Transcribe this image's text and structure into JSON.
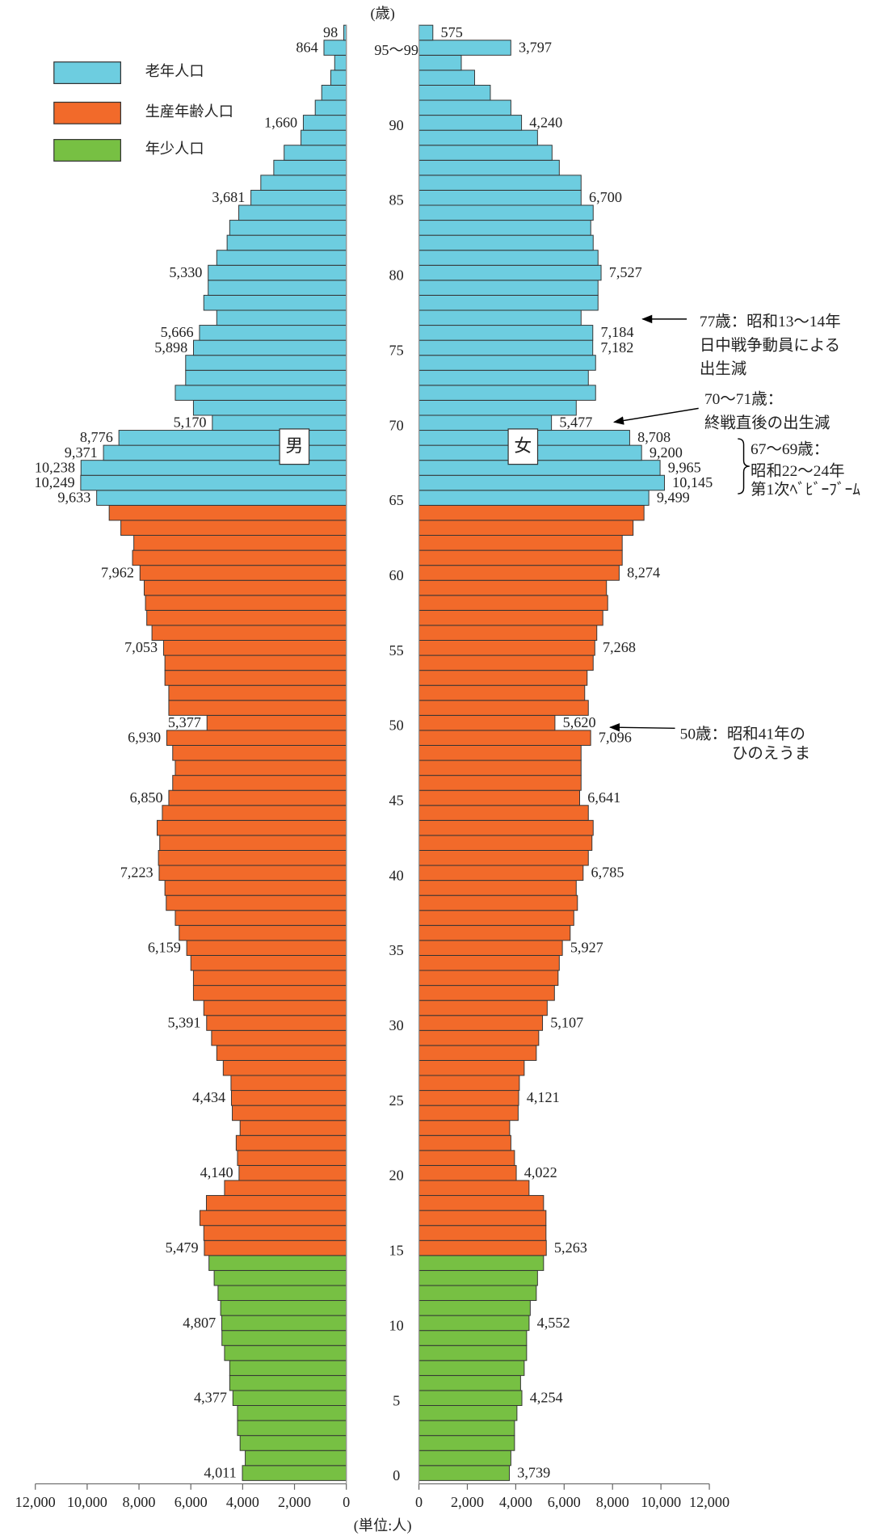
{
  "chart_data": {
    "type": "population_pyramid",
    "y_unit": "(歳)",
    "x_unit": "(単位:人)",
    "legend": [
      {
        "name": "老年人口",
        "color": "#6dcde0"
      },
      {
        "name": "生産年齢人口",
        "color": "#f26a2a"
      },
      {
        "name": "年少人口",
        "color": "#77c043"
      }
    ],
    "categories": [
      "0",
      null,
      null,
      null,
      null,
      "5",
      null,
      null,
      null,
      null,
      "10",
      null,
      null,
      null,
      null,
      "15",
      null,
      null,
      null,
      null,
      "20",
      null,
      null,
      null,
      null,
      "25",
      null,
      null,
      null,
      null,
      "30",
      null,
      null,
      null,
      null,
      "35",
      null,
      null,
      null,
      null,
      "40",
      null,
      null,
      null,
      null,
      "45",
      null,
      null,
      null,
      null,
      "50",
      null,
      null,
      null,
      null,
      "55",
      null,
      null,
      null,
      null,
      "60",
      null,
      null,
      null,
      null,
      "65",
      null,
      null,
      null,
      null,
      "70",
      null,
      null,
      null,
      null,
      "75",
      null,
      null,
      null,
      null,
      "80",
      null,
      null,
      null,
      null,
      "85",
      null,
      null,
      null,
      null,
      "90",
      null,
      null,
      null,
      null,
      "95～99",
      null
    ],
    "bar_colors": [
      "#77c043",
      "#77c043",
      "#77c043",
      "#77c043",
      "#77c043",
      "#77c043",
      "#77c043",
      "#77c043",
      "#77c043",
      "#77c043",
      "#77c043",
      "#77c043",
      "#77c043",
      "#77c043",
      "#77c043",
      "#f26a2a",
      "#f26a2a",
      "#f26a2a",
      "#f26a2a",
      "#f26a2a",
      "#f26a2a",
      "#f26a2a",
      "#f26a2a",
      "#f26a2a",
      "#f26a2a",
      "#f26a2a",
      "#f26a2a",
      "#f26a2a",
      "#f26a2a",
      "#f26a2a",
      "#f26a2a",
      "#f26a2a",
      "#f26a2a",
      "#f26a2a",
      "#f26a2a",
      "#f26a2a",
      "#f26a2a",
      "#f26a2a",
      "#f26a2a",
      "#f26a2a",
      "#f26a2a",
      "#f26a2a",
      "#f26a2a",
      "#f26a2a",
      "#f26a2a",
      "#f26a2a",
      "#f26a2a",
      "#f26a2a",
      "#f26a2a",
      "#f26a2a",
      "#f26a2a",
      "#f26a2a",
      "#f26a2a",
      "#f26a2a",
      "#f26a2a",
      "#f26a2a",
      "#f26a2a",
      "#f26a2a",
      "#f26a2a",
      "#f26a2a",
      "#f26a2a",
      "#f26a2a",
      "#f26a2a",
      "#f26a2a",
      "#f26a2a",
      "#6dcde0",
      "#6dcde0",
      "#6dcde0",
      "#6dcde0",
      "#6dcde0",
      "#6dcde0",
      "#6dcde0",
      "#6dcde0",
      "#6dcde0",
      "#6dcde0",
      "#6dcde0",
      "#6dcde0",
      "#6dcde0",
      "#6dcde0",
      "#6dcde0",
      "#6dcde0",
      "#6dcde0",
      "#6dcde0",
      "#6dcde0",
      "#6dcde0",
      "#6dcde0",
      "#6dcde0",
      "#6dcde0",
      "#6dcde0",
      "#6dcde0",
      "#6dcde0",
      "#6dcde0",
      "#6dcde0",
      "#6dcde0",
      "#6dcde0",
      "#6dcde0",
      "#6dcde0"
    ],
    "series": [
      {
        "name": "男",
        "xlim": [
          12000,
          0
        ],
        "xticks": [
          {
            "value": 12000,
            "label": "12,000"
          },
          {
            "value": 10000,
            "label": "10,000"
          },
          {
            "value": 8000,
            "label": "8,000"
          },
          {
            "value": 6000,
            "label": "6,000"
          },
          {
            "value": 4000,
            "label": "4,000"
          },
          {
            "value": 2000,
            "label": "2,000"
          },
          0
        ],
        "values": [
          4011,
          3900,
          4100,
          4200,
          4200,
          4377,
          4500,
          4500,
          4700,
          4800,
          4807,
          4850,
          4950,
          5100,
          5300,
          5479,
          5500,
          5650,
          5400,
          4700,
          4140,
          4200,
          4250,
          4100,
          4400,
          4434,
          4450,
          4750,
          5000,
          5200,
          5391,
          5500,
          5900,
          5900,
          6000,
          6159,
          6450,
          6600,
          6950,
          7000,
          7223,
          7250,
          7200,
          7300,
          7100,
          6850,
          6700,
          6600,
          6700,
          6930,
          5377,
          6850,
          6850,
          7000,
          7000,
          7053,
          7500,
          7700,
          7750,
          7800,
          7962,
          8250,
          8200,
          8700,
          9150,
          9633,
          10249,
          10238,
          9371,
          8776,
          5170,
          5900,
          6600,
          6200,
          6200,
          5898,
          5666,
          5000,
          5500,
          5330,
          5330,
          5000,
          4600,
          4500,
          4150,
          3681,
          3300,
          2800,
          2400,
          1750,
          1660,
          1200,
          950,
          600,
          450,
          864,
          98
        ],
        "value_labels": [
          "4,011",
          null,
          null,
          null,
          null,
          "4,377",
          null,
          null,
          null,
          null,
          "4,807",
          null,
          null,
          null,
          null,
          "5,479",
          null,
          null,
          null,
          null,
          "4,140",
          null,
          null,
          null,
          null,
          "4,434",
          null,
          null,
          null,
          null,
          "5,391",
          null,
          null,
          null,
          null,
          "6,159",
          null,
          null,
          null,
          null,
          "7,223",
          null,
          null,
          null,
          null,
          "6,850",
          null,
          null,
          null,
          "6,930",
          "5,377",
          null,
          null,
          null,
          null,
          "7,053",
          null,
          null,
          null,
          null,
          "7,962",
          null,
          null,
          null,
          null,
          "9,633",
          "10,249",
          "10,238",
          "9,371",
          "8,776",
          "5,170",
          null,
          null,
          null,
          null,
          "5,898",
          "5,666",
          null,
          null,
          null,
          "5,330",
          null,
          null,
          null,
          null,
          "3,681",
          null,
          null,
          null,
          null,
          "1,660",
          null,
          null,
          null,
          null,
          "864",
          "98"
        ]
      },
      {
        "name": "女",
        "xlim": [
          0,
          12000
        ],
        "xticks": [
          0,
          {
            "value": 2000,
            "label": "2,000"
          },
          {
            "value": 4000,
            "label": "4,000"
          },
          {
            "value": 6000,
            "label": "6,000"
          },
          {
            "value": 8000,
            "label": "8,000"
          },
          {
            "value": 10000,
            "label": "10,000"
          },
          {
            "value": 12000,
            "label": "12,000"
          }
        ],
        "values": [
          3739,
          3800,
          3950,
          3950,
          4050,
          4254,
          4200,
          4350,
          4450,
          4450,
          4552,
          4600,
          4850,
          4900,
          5150,
          5263,
          5250,
          5250,
          5150,
          4550,
          4022,
          3950,
          3800,
          3750,
          4100,
          4121,
          4150,
          4350,
          4850,
          4950,
          5107,
          5300,
          5600,
          5750,
          5800,
          5927,
          6250,
          6400,
          6550,
          6500,
          6785,
          7000,
          7150,
          7200,
          7000,
          6641,
          6700,
          6700,
          6700,
          7096,
          5620,
          7000,
          6850,
          6950,
          7200,
          7268,
          7350,
          7600,
          7800,
          7750,
          8274,
          8400,
          8400,
          8850,
          9300,
          9499,
          10145,
          9965,
          9200,
          8708,
          5477,
          6500,
          7300,
          7000,
          7300,
          7182,
          7184,
          6700,
          7400,
          7400,
          7527,
          7400,
          7200,
          7100,
          7200,
          6700,
          6700,
          5800,
          5500,
          4900,
          4240,
          3800,
          2950,
          2300,
          1750,
          3797,
          575
        ],
        "value_labels": [
          "3,739",
          null,
          null,
          null,
          null,
          "4,254",
          null,
          null,
          null,
          null,
          "4,552",
          null,
          null,
          null,
          null,
          "5,263",
          null,
          null,
          null,
          null,
          "4,022",
          null,
          null,
          null,
          null,
          "4,121",
          null,
          null,
          null,
          null,
          "5,107",
          null,
          null,
          null,
          null,
          "5,927",
          null,
          null,
          null,
          null,
          "6,785",
          null,
          null,
          null,
          null,
          "6,641",
          null,
          null,
          null,
          "7,096",
          "5,620",
          null,
          null,
          null,
          null,
          "7,268",
          null,
          null,
          null,
          null,
          "8,274",
          null,
          null,
          null,
          null,
          "9,499",
          "10,145",
          "9,965",
          "9,200",
          "8,708",
          "5,477",
          null,
          null,
          null,
          null,
          "7,182",
          "7,184",
          null,
          null,
          null,
          "7,527",
          null,
          null,
          null,
          null,
          "6,700",
          null,
          null,
          null,
          null,
          "4,240",
          null,
          null,
          null,
          null,
          "3,797",
          "575"
        ]
      }
    ],
    "annotations": [
      {
        "text": [
          "77歳：昭和13～14年",
          "日中戦争動員による",
          "出生減"
        ]
      },
      {
        "text": [
          "70～71歳：",
          "終戦直後の出生減"
        ]
      },
      {
        "text": [
          "67～69歳：",
          "昭和22～24年",
          "第1次ﾍﾞﾋﾞｰﾌﾞｰﾑ"
        ]
      },
      {
        "text": [
          "50歳：昭和41年の",
          "ひのえうま"
        ]
      }
    ]
  }
}
